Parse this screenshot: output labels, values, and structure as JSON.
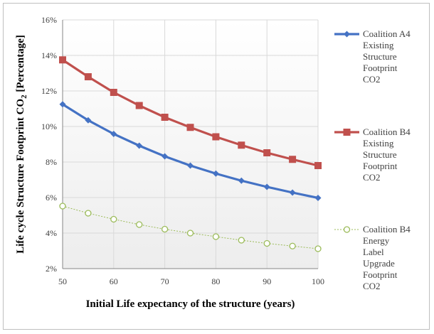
{
  "chart_data": {
    "type": "line",
    "title": "",
    "xlabel": "Initial Life expectancy of the structure (years)",
    "ylabel_main": "Life cycle Structure Footprint CO",
    "ylabel_sub": "2",
    "ylabel_tail": " [Percentage]",
    "x": [
      50,
      55,
      60,
      65,
      70,
      75,
      80,
      85,
      90,
      95,
      100
    ],
    "x_ticks": [
      "50",
      "60",
      "70",
      "80",
      "90",
      "100"
    ],
    "y_ticks": [
      "2%",
      "4%",
      "6%",
      "8%",
      "10%",
      "12%",
      "14%",
      "16%"
    ],
    "xlim": [
      50,
      100
    ],
    "ylim": [
      2,
      16
    ],
    "grid": true,
    "legend_position": "right",
    "series": [
      {
        "name": "Coalition A4 Existing Structure Footprint CO2",
        "legend_lines": [
          "Coalition A4",
          "Existing",
          "Structure",
          "Footprint",
          "CO2"
        ],
        "color": "#4472c4",
        "marker": "diamond",
        "values": [
          11.25,
          10.35,
          9.58,
          8.92,
          8.32,
          7.8,
          7.35,
          6.95,
          6.6,
          6.28,
          5.98
        ]
      },
      {
        "name": "Coalition B4 Existing Structure Footprint CO2",
        "legend_lines": [
          "Coalition B4",
          "Existing",
          "Structure",
          "Footprint",
          "CO2"
        ],
        "color": "#c0504d",
        "marker": "square",
        "values": [
          13.75,
          12.8,
          11.92,
          11.18,
          10.52,
          9.95,
          9.42,
          8.95,
          8.52,
          8.15,
          7.8
        ]
      },
      {
        "name": "Coalition B4 Energy Label Upgrade Footprint CO2",
        "legend_lines": [
          "Coalition B4",
          "Energy",
          "Label",
          "Upgrade",
          "Footprint",
          "CO2"
        ],
        "color": "#9bbb59",
        "marker": "circle-open",
        "values": [
          5.52,
          5.12,
          4.78,
          4.48,
          4.22,
          4.0,
          3.8,
          3.6,
          3.42,
          3.27,
          3.12
        ]
      }
    ]
  }
}
